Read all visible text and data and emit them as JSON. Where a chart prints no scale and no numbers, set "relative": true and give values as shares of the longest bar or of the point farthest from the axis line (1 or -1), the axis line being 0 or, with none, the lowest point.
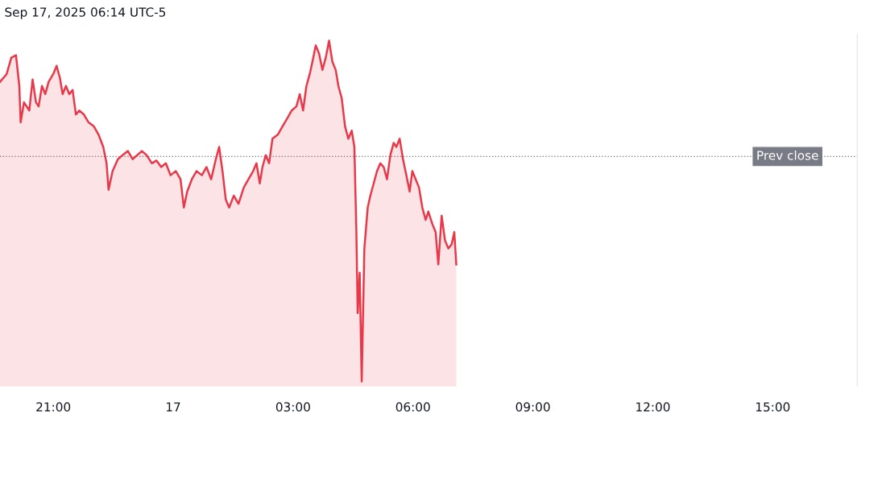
{
  "chart_data": {
    "type": "area",
    "relative": true,
    "annotations": [
      "Sep 17, 2025 06:14 UTC-5"
    ],
    "xlim": [
      "2025-09-16T19:40",
      "2025-09-17T17:07"
    ],
    "xticks": [
      {
        "value": "2025-09-16T21:00",
        "label": "21:00"
      },
      {
        "value": "2025-09-17T00:00",
        "label": "17"
      },
      {
        "value": "2025-09-17T03:00",
        "label": "03:00"
      },
      {
        "value": "2025-09-17T06:00",
        "label": "06:00"
      },
      {
        "value": "2025-09-17T09:00",
        "label": "09:00"
      },
      {
        "value": "2025-09-17T12:00",
        "label": "12:00"
      },
      {
        "value": "2025-09-17T15:00",
        "label": "15:00"
      }
    ],
    "tick_labels": "x",
    "ref_lines": [
      {
        "axis": "y",
        "value": 0.66,
        "label": "Prev close",
        "color": "#787b86",
        "line_style": "dotted"
      }
    ],
    "series": [
      {
        "color": "#e8394a",
        "x": [
          "2025-09-16T19:40",
          "2025-09-16T19:50",
          "2025-09-16T19:57",
          "2025-09-16T20:04",
          "2025-09-16T20:09",
          "2025-09-16T20:11",
          "2025-09-16T20:16",
          "2025-09-16T20:24",
          "2025-09-16T20:29",
          "2025-09-16T20:34",
          "2025-09-16T20:38",
          "2025-09-16T20:43",
          "2025-09-16T20:48",
          "2025-09-16T20:53",
          "2025-09-16T21:00",
          "2025-09-16T21:05",
          "2025-09-16T21:10",
          "2025-09-16T21:14",
          "2025-09-16T21:19",
          "2025-09-16T21:24",
          "2025-09-16T21:29",
          "2025-09-16T21:34",
          "2025-09-16T21:39",
          "2025-09-16T21:46",
          "2025-09-16T21:53",
          "2025-09-16T22:01",
          "2025-09-16T22:08",
          "2025-09-16T22:15",
          "2025-09-16T22:20",
          "2025-09-16T22:23",
          "2025-09-16T22:29",
          "2025-09-16T22:37",
          "2025-09-16T22:44",
          "2025-09-16T22:52",
          "2025-09-16T22:59",
          "2025-09-16T23:06",
          "2025-09-16T23:13",
          "2025-09-16T23:20",
          "2025-09-16T23:28",
          "2025-09-16T23:35",
          "2025-09-16T23:42",
          "2025-09-16T23:49",
          "2025-09-16T23:56",
          "2025-09-17T00:04",
          "2025-09-17T00:11",
          "2025-09-17T00:16",
          "2025-09-17T00:21",
          "2025-09-17T00:28",
          "2025-09-17T00:35",
          "2025-09-17T00:43",
          "2025-09-17T00:50",
          "2025-09-17T00:57",
          "2025-09-17T01:04",
          "2025-09-17T01:09",
          "2025-09-17T01:14",
          "2025-09-17T01:19",
          "2025-09-17T01:24",
          "2025-09-17T01:31",
          "2025-09-17T01:38",
          "2025-09-17T01:46",
          "2025-09-17T01:53",
          "2025-09-17T02:00",
          "2025-09-17T02:05",
          "2025-09-17T02:10",
          "2025-09-17T02:14",
          "2025-09-17T02:19",
          "2025-09-17T02:24",
          "2025-09-17T02:29",
          "2025-09-17T02:37",
          "2025-09-17T02:44",
          "2025-09-17T02:51",
          "2025-09-17T02:58",
          "2025-09-17T03:05",
          "2025-09-17T03:10",
          "2025-09-17T03:15",
          "2025-09-17T03:20",
          "2025-09-17T03:25",
          "2025-09-17T03:29",
          "2025-09-17T03:34",
          "2025-09-17T03:39",
          "2025-09-17T03:44",
          "2025-09-17T03:49",
          "2025-09-17T03:54",
          "2025-09-17T03:59",
          "2025-09-17T04:04",
          "2025-09-17T04:08",
          "2025-09-17T04:13",
          "2025-09-17T04:18",
          "2025-09-17T04:23",
          "2025-09-17T04:28",
          "2025-09-17T04:32",
          "2025-09-17T04:35",
          "2025-09-17T04:37",
          "2025-09-17T04:40",
          "2025-09-17T04:43",
          "2025-09-17T04:47",
          "2025-09-17T04:52",
          "2025-09-17T04:56",
          "2025-09-17T05:01",
          "2025-09-17T05:06",
          "2025-09-17T05:11",
          "2025-09-17T05:16",
          "2025-09-17T05:21",
          "2025-09-17T05:26",
          "2025-09-17T05:31",
          "2025-09-17T05:35",
          "2025-09-17T05:40",
          "2025-09-17T05:45",
          "2025-09-17T05:50",
          "2025-09-17T05:55",
          "2025-09-17T05:59",
          "2025-09-17T06:04",
          "2025-09-17T06:09",
          "2025-09-17T06:14",
          "2025-09-17T06:19",
          "2025-09-17T06:23",
          "2025-09-17T06:29",
          "2025-09-17T06:34",
          "2025-09-17T06:38",
          "2025-09-17T06:43",
          "2025-09-17T06:48",
          "2025-09-17T06:53",
          "2025-09-17T06:58",
          "2025-09-17T07:02",
          "2025-09-17T07:05"
        ],
        "values": [
          0.879,
          0.902,
          0.95,
          0.957,
          0.867,
          0.76,
          0.819,
          0.795,
          0.886,
          0.819,
          0.807,
          0.867,
          0.843,
          0.879,
          0.902,
          0.926,
          0.89,
          0.843,
          0.867,
          0.843,
          0.855,
          0.783,
          0.795,
          0.783,
          0.76,
          0.748,
          0.724,
          0.688,
          0.64,
          0.562,
          0.617,
          0.652,
          0.664,
          0.676,
          0.652,
          0.664,
          0.676,
          0.664,
          0.64,
          0.648,
          0.629,
          0.64,
          0.605,
          0.617,
          0.593,
          0.51,
          0.557,
          0.593,
          0.617,
          0.605,
          0.629,
          0.593,
          0.652,
          0.688,
          0.617,
          0.533,
          0.51,
          0.545,
          0.521,
          0.569,
          0.593,
          0.617,
          0.64,
          0.581,
          0.629,
          0.664,
          0.64,
          0.712,
          0.724,
          0.748,
          0.771,
          0.795,
          0.807,
          0.843,
          0.795,
          0.867,
          0.902,
          0.938,
          0.986,
          0.962,
          0.914,
          0.95,
          1.0,
          0.938,
          0.914,
          0.867,
          0.831,
          0.748,
          0.712,
          0.736,
          0.688,
          0.438,
          0.2,
          0.319,
          0,
          0.39,
          0.51,
          0.545,
          0.581,
          0.617,
          0.64,
          0.629,
          0.593,
          0.664,
          0.7,
          0.688,
          0.712,
          0.652,
          0.605,
          0.557,
          0.617,
          0.593,
          0.569,
          0.51,
          0.474,
          0.498,
          0.462,
          0.438,
          0.343,
          0.486,
          0.414,
          0.39,
          0.402,
          0.438,
          0.343
        ]
      }
    ]
  }
}
